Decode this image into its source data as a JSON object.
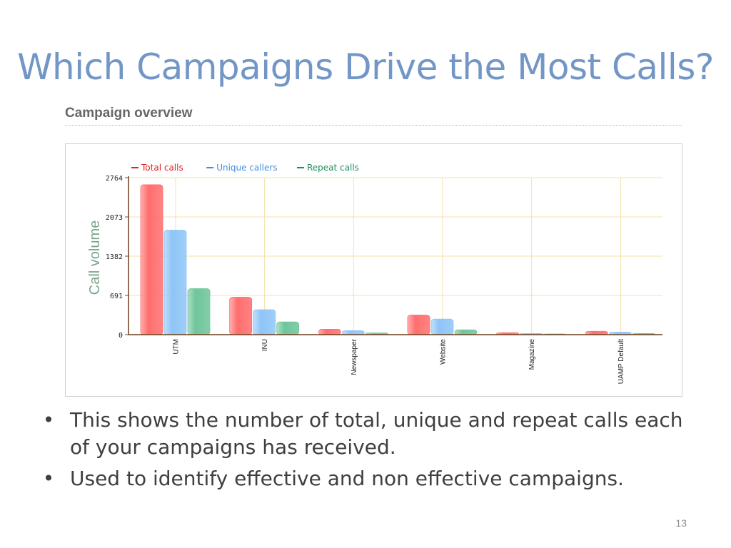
{
  "slide": {
    "title": "Which Campaigns Drive the Most Calls?",
    "section_heading": "Campaign overview",
    "bullets": [
      "This shows the number of total, unique and repeat calls each of your campaigns has received.",
      "Used to identify effective and non effective campaigns."
    ],
    "bullet_symbol": "•",
    "page_number": "13"
  },
  "chart_data": {
    "type": "bar",
    "title": "",
    "xlabel": "",
    "ylabel": "Call volume",
    "ylim": [
      0,
      2764
    ],
    "yticks": [
      0,
      691,
      1382,
      2073,
      2764
    ],
    "grid": true,
    "legend_position": "top-left",
    "categories": [
      "UTM",
      "INU",
      "Newspaper",
      "Website",
      "Magazine",
      "UAMP Default"
    ],
    "series": [
      {
        "name": "Total calls",
        "color": "#ff6e6e",
        "values": [
          2640,
          660,
          95,
          345,
          35,
          60
        ]
      },
      {
        "name": "Unique callers",
        "color": "#8ec5f7",
        "values": [
          1840,
          440,
          70,
          275,
          20,
          45
        ]
      },
      {
        "name": "Repeat calls",
        "color": "#6fc59b",
        "values": [
          810,
          225,
          30,
          85,
          12,
          20
        ]
      }
    ],
    "legend_text_colors": [
      "#e02020",
      "#3f8fe0",
      "#1f8f5f"
    ]
  }
}
